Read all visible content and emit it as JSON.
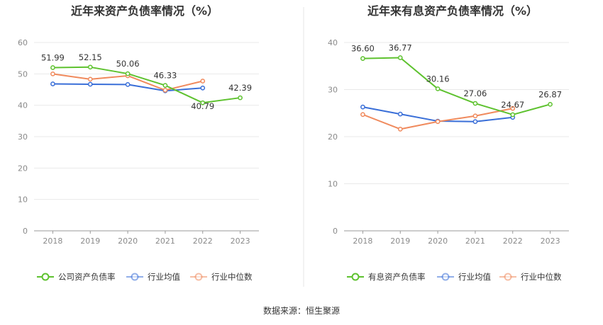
{
  "chart_data": [
    {
      "type": "line",
      "title": "近年来资产负债率情况（%）",
      "categories": [
        "2018",
        "2019",
        "2020",
        "2021",
        "2022",
        "2023"
      ],
      "ylim": [
        0,
        60
      ],
      "yticks": [
        0,
        10,
        20,
        30,
        40,
        50,
        60
      ],
      "grid": true,
      "legend_position": "bottom",
      "series": [
        {
          "name": "公司资产负债率",
          "color": "#5ec22f",
          "values": [
            51.99,
            52.15,
            50.06,
            46.33,
            40.79,
            42.39
          ],
          "labels": [
            "51.99",
            "52.15",
            "50.06",
            "46.33",
            "40.79",
            "42.39"
          ]
        },
        {
          "name": "行业均值",
          "color": "#3a6fd8",
          "values": [
            46.8,
            46.7,
            46.6,
            44.6,
            45.5,
            null
          ]
        },
        {
          "name": "行业中位数",
          "color": "#f08a5d",
          "values": [
            50.0,
            48.3,
            49.4,
            44.8,
            47.7,
            null
          ]
        }
      ]
    },
    {
      "type": "line",
      "title": "近年来有息资产负债率情况（%）",
      "categories": [
        "2018",
        "2019",
        "2020",
        "2021",
        "2022",
        "2023"
      ],
      "ylim": [
        0,
        40
      ],
      "yticks": [
        0,
        10,
        20,
        30,
        40
      ],
      "grid": true,
      "legend_position": "bottom",
      "series": [
        {
          "name": "有息资产负债率",
          "color": "#5ec22f",
          "values": [
            36.6,
            36.77,
            30.16,
            27.06,
            24.67,
            26.87
          ],
          "labels": [
            "36.60",
            "36.77",
            "30.16",
            "27.06",
            "24.67",
            "26.87"
          ]
        },
        {
          "name": "行业均值",
          "color": "#3a6fd8",
          "values": [
            26.3,
            24.8,
            23.3,
            23.2,
            24.1,
            null
          ]
        },
        {
          "name": "行业中位数",
          "color": "#f08a5d",
          "values": [
            24.7,
            21.6,
            23.2,
            24.4,
            26.0,
            null
          ]
        }
      ]
    }
  ],
  "source": "数据来源：恒生聚源",
  "colors": {
    "divider": "#e6e6e6",
    "grid": "#e9e9e9",
    "axis": "#999999"
  }
}
